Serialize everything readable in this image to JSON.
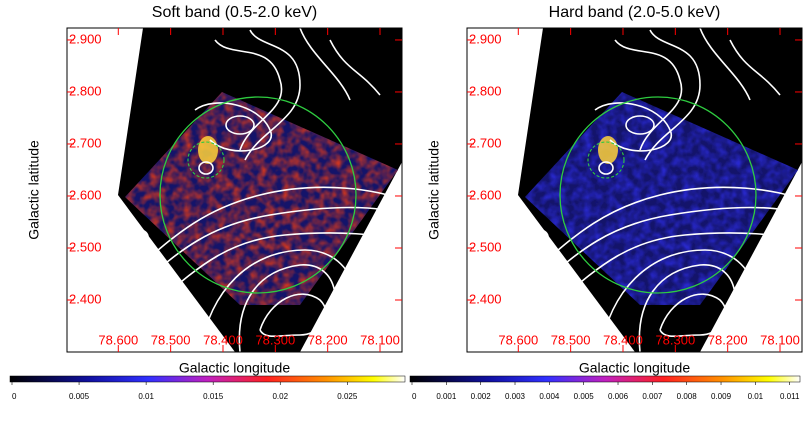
{
  "chart_data": [
    {
      "type": "image",
      "title": "Soft band (0.5-2.0 keV)",
      "xlabel": "Galactic longitude",
      "ylabel": "Galactic latitude",
      "xlim": [
        78.698,
        78.058
      ],
      "ylim": [
        2.3,
        2.923
      ],
      "xticks": [
        {
          "value": 78.6,
          "label": "78.600"
        },
        {
          "value": 78.5,
          "label": "78.500"
        },
        {
          "value": 78.4,
          "label": "78.400"
        },
        {
          "value": 78.3,
          "label": "78.300"
        },
        {
          "value": 78.2,
          "label": "78.200"
        },
        {
          "value": 78.1,
          "label": "78.100"
        }
      ],
      "yticks": [
        {
          "value": 2.9,
          "label": "2.900"
        },
        {
          "value": 2.8,
          "label": "2.800"
        },
        {
          "value": 2.7,
          "label": "2.700"
        },
        {
          "value": 2.6,
          "label": "2.600"
        },
        {
          "value": 2.5,
          "label": "2.500"
        },
        {
          "value": 2.4,
          "label": "2.400"
        }
      ],
      "tick_color": "#ff0000",
      "emission_color": "#d8381c",
      "colorbar": {
        "lim": [
          0,
          0.0293
        ],
        "ticks": [
          0,
          0.005,
          0.01,
          0.015,
          0.02,
          0.025
        ]
      }
    },
    {
      "type": "image",
      "title": "Hard band (2.0-5.0 keV)",
      "xlabel": "Galactic longitude",
      "ylabel": "Galactic latitude",
      "xlim": [
        78.698,
        78.058
      ],
      "ylim": [
        2.3,
        2.923
      ],
      "xticks": [
        {
          "value": 78.6,
          "label": "78.600"
        },
        {
          "value": 78.5,
          "label": "78.500"
        },
        {
          "value": 78.4,
          "label": "78.400"
        },
        {
          "value": 78.3,
          "label": "78.300"
        },
        {
          "value": 78.2,
          "label": "78.200"
        },
        {
          "value": 78.1,
          "label": "78.100"
        }
      ],
      "yticks": [
        {
          "value": 2.9,
          "label": "2.900"
        },
        {
          "value": 2.8,
          "label": "2.800"
        },
        {
          "value": 2.7,
          "label": "2.700"
        },
        {
          "value": 2.6,
          "label": "2.600"
        },
        {
          "value": 2.5,
          "label": "2.500"
        },
        {
          "value": 2.4,
          "label": "2.400"
        }
      ],
      "tick_color": "#ff0000",
      "emission_color": "#2a2ad8",
      "colorbar": {
        "lim": [
          0,
          0.0113
        ],
        "ticks": [
          0,
          0.001,
          0.002,
          0.003,
          0.004,
          0.005,
          0.006,
          0.007,
          0.008,
          0.009,
          0.01,
          0.011
        ]
      }
    }
  ]
}
